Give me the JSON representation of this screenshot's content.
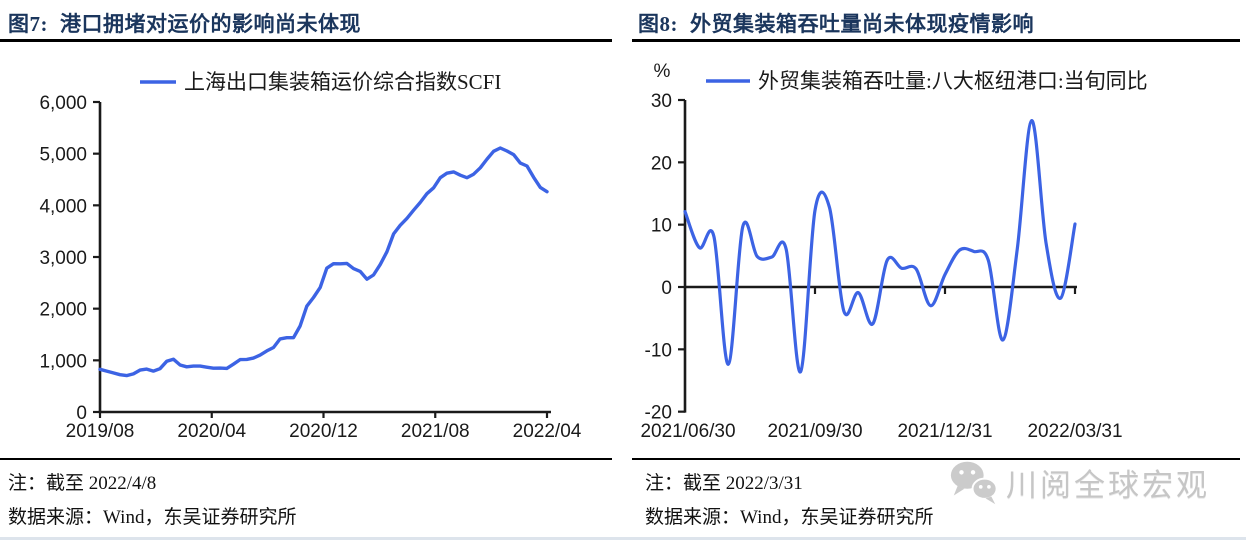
{
  "figures": [
    {
      "label": "图7:",
      "title": "港口拥堵对运价的影响尚未体现",
      "note": "注：截至 2022/4/8",
      "source": "数据来源：Wind，东吴证券研究所",
      "chart_data": {
        "type": "line",
        "legend": [
          "上海出口集装箱运价综合指数SCFI"
        ],
        "legend_position": "top",
        "line_color": "#3C63E4",
        "grid": false,
        "frequency": "biweekly",
        "x_range": [
          "2019/08",
          "2022/04/08"
        ],
        "x_tick_labels": [
          "2019/08",
          "2020/04",
          "2020/12",
          "2021/08",
          "2022/04"
        ],
        "ylim": [
          0,
          6000
        ],
        "y_ticks": [
          0,
          1000,
          2000,
          3000,
          4000,
          5000,
          6000
        ],
        "y_tick_labels": [
          "0",
          "1,000",
          "2,000",
          "3,000",
          "4,000",
          "5,000",
          "6,000"
        ],
        "values": [
          826,
          791,
          757,
          722,
          705,
          738,
          810,
          830,
          792,
          838,
          981,
          1022,
          910,
          875,
          889,
          889,
          868,
          847,
          849,
          844,
          925,
          1015,
          1019,
          1044,
          1101,
          1183,
          1249,
          1414,
          1438,
          1438,
          1664,
          2048,
          2217,
          2412,
          2783,
          2870,
          2868,
          2876,
          2776,
          2721,
          2570,
          2652,
          2852,
          3100,
          3448,
          3613,
          3748,
          3905,
          4054,
          4226,
          4340,
          4535,
          4622,
          4648,
          4583,
          4535,
          4602,
          4727,
          4895,
          5046,
          5110,
          5051,
          4981,
          4818,
          4762,
          4540,
          4348,
          4263
        ]
      }
    },
    {
      "label": "图8:",
      "title": "外贸集装箱吞吐量尚未体现疫情影响",
      "note": "注：截至 2022/3/31",
      "source": "数据来源：Wind，东吴证券研究所",
      "chart_data": {
        "type": "line",
        "legend": [
          "外贸集装箱吞吐量:八大枢纽港口:当旬同比"
        ],
        "legend_position": "top",
        "line_color": "#3C63E4",
        "smooth": true,
        "grid": false,
        "y_unit": "%",
        "x": [
          "2021/06/30",
          "2021/07/10",
          "2021/07/20",
          "2021/07/31",
          "2021/08/10",
          "2021/08/20",
          "2021/08/31",
          "2021/09/10",
          "2021/09/20",
          "2021/09/30",
          "2021/10/10",
          "2021/10/20",
          "2021/10/31",
          "2021/11/10",
          "2021/11/20",
          "2021/11/30",
          "2021/12/10",
          "2021/12/20",
          "2021/12/31",
          "2022/01/10",
          "2022/01/20",
          "2022/01/31",
          "2022/02/10",
          "2022/02/20",
          "2022/02/28",
          "2022/03/10",
          "2022/03/20",
          "2022/03/31"
        ],
        "x_tick_labels": [
          "2021/06/30",
          "2021/09/30",
          "2021/12/31",
          "2022/03/31"
        ],
        "ylim": [
          -20,
          30
        ],
        "y_ticks": [
          -20,
          -10,
          0,
          10,
          20,
          30
        ],
        "y_tick_labels": [
          "-20",
          "-10",
          "0",
          "10",
          "20",
          "30"
        ],
        "values": [
          12.1,
          6.3,
          8.1,
          -12.4,
          9.7,
          4.9,
          4.8,
          6.1,
          -13.6,
          12.3,
          12.8,
          -3.9,
          -0.9,
          -5.9,
          4.3,
          3.0,
          2.9,
          -3.0,
          2.0,
          5.9,
          5.7,
          4.3,
          -8.5,
          6.0,
          26.7,
          7.0,
          -1.8,
          10.1
        ]
      }
    }
  ],
  "watermark": {
    "icon": "wechat-bubbles-icon",
    "text": "川阅全球宏观",
    "color": "#c6c6c6"
  }
}
